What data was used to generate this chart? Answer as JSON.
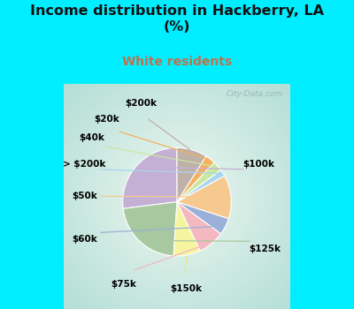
{
  "title": "Income distribution in Hackberry, LA\n(%)",
  "subtitle": "White residents",
  "title_color": "#111111",
  "subtitle_color": "#c0724a",
  "bg_cyan": "#00eeff",
  "bg_chart_outer": "#b2dfdb",
  "bg_chart_inner": "#e8f5f0",
  "labels": [
    "$100k",
    "$125k",
    "$150k",
    "$75k",
    "$60k",
    "$50k",
    "> $200k",
    "$40k",
    "$20k",
    "$200k"
  ],
  "values": [
    27,
    22,
    8,
    8,
    5,
    13,
    2,
    3,
    3,
    9
  ],
  "colors": [
    "#c5b0d5",
    "#a8c8a0",
    "#f5f5a0",
    "#f4b8c0",
    "#9ab0d8",
    "#f5c990",
    "#aad4f0",
    "#c8e8a0",
    "#f5b060",
    "#bfb0a8"
  ],
  "line_colors": [
    "#c5b0d5",
    "#a8c8a0",
    "#e8e880",
    "#f4b8c0",
    "#9ab0d8",
    "#f5c990",
    "#aad4f0",
    "#c8e8a0",
    "#f5b060",
    "#bfb0a8"
  ],
  "startangle": 90,
  "watermark": "City-Data.com"
}
